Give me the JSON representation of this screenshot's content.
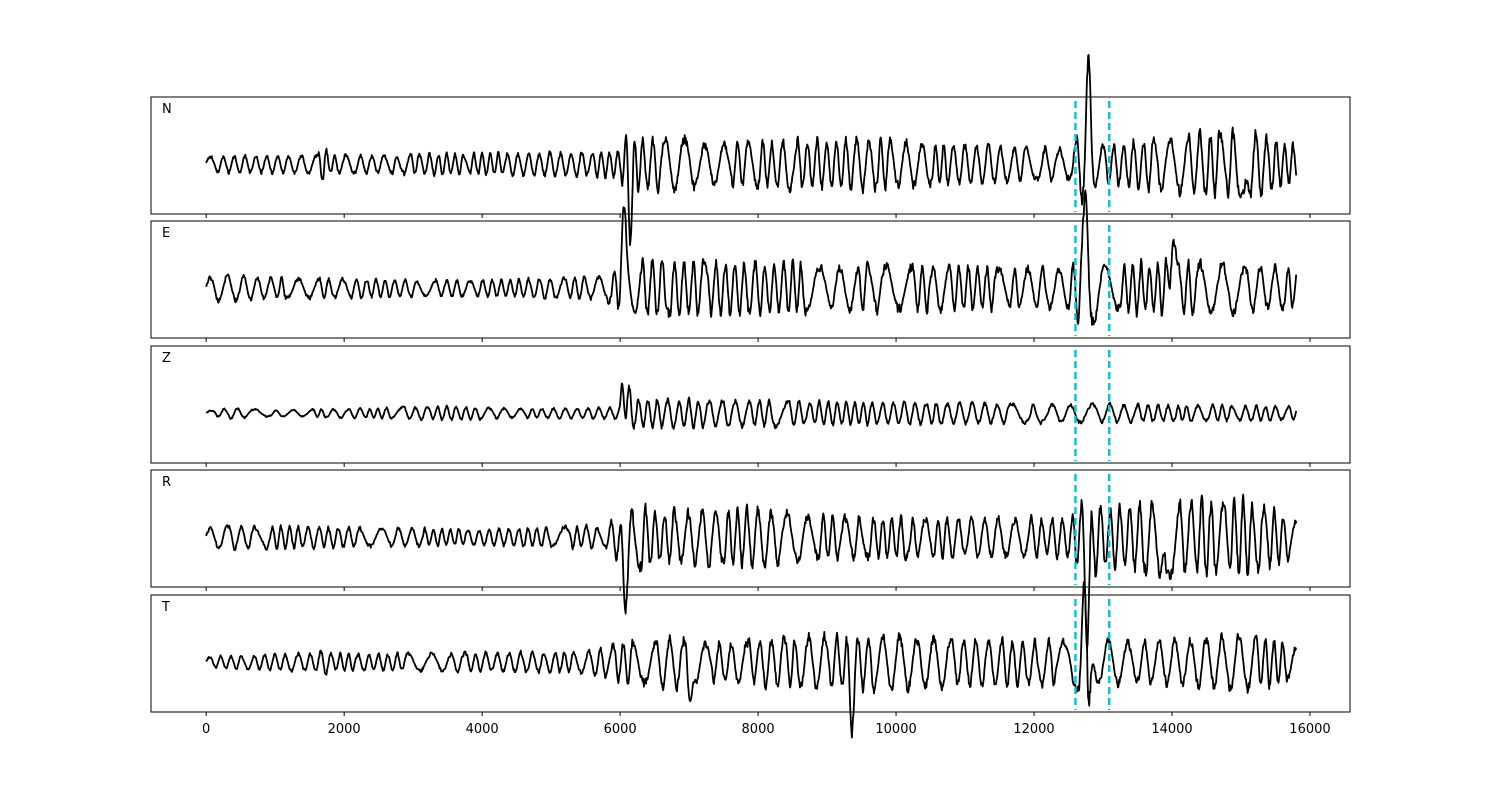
{
  "chart_data": {
    "type": "line",
    "title": "",
    "xlabel": "",
    "ylabel": "",
    "xlim": [
      -800,
      16580
    ],
    "x_ticks": [
      "0",
      "2000",
      "4000",
      "6000",
      "8000",
      "10000",
      "12000",
      "14000",
      "16000"
    ],
    "x_tick_values": [
      0,
      2000,
      4000,
      6000,
      8000,
      10000,
      12000,
      14000,
      16000
    ],
    "sample_count": 15800,
    "grid": false,
    "line_color": "#000000",
    "marker_color": "#17becf",
    "markers": [
      12600,
      13090
    ],
    "panels": [
      {
        "name": "N",
        "envelope": [
          [
            0,
            0.17
          ],
          [
            1600,
            0.2
          ],
          [
            1700,
            0.4
          ],
          [
            1800,
            0.2
          ],
          [
            3400,
            0.22
          ],
          [
            5500,
            0.25
          ],
          [
            6000,
            0.3
          ],
          [
            6100,
            0.72
          ],
          [
            6300,
            0.55
          ],
          [
            7000,
            0.55
          ],
          [
            7200,
            0.42
          ],
          [
            9300,
            0.55
          ],
          [
            12500,
            0.32
          ],
          [
            12750,
            0.9
          ],
          [
            12900,
            0.4
          ],
          [
            13700,
            0.55
          ],
          [
            14800,
            0.7
          ],
          [
            15100,
            0.72
          ],
          [
            15800,
            0.4
          ]
        ],
        "spikes": [
          [
            6150,
            -0.6
          ],
          [
            12780,
            1.0
          ],
          [
            15050,
            -0.72
          ]
        ]
      },
      {
        "name": "E",
        "envelope": [
          [
            0,
            0.22
          ],
          [
            200,
            0.28
          ],
          [
            1000,
            0.22
          ],
          [
            4000,
            0.17
          ],
          [
            5800,
            0.25
          ],
          [
            6000,
            0.55
          ],
          [
            6200,
            0.6
          ],
          [
            8000,
            0.55
          ],
          [
            9000,
            0.5
          ],
          [
            12500,
            0.42
          ],
          [
            12700,
            0.95
          ],
          [
            13000,
            0.6
          ],
          [
            13100,
            0.4
          ],
          [
            13500,
            0.55
          ],
          [
            14000,
            0.6
          ],
          [
            15800,
            0.4
          ]
        ],
        "spikes": [
          [
            6050,
            0.8
          ],
          [
            12750,
            1.0
          ],
          [
            14000,
            0.65
          ]
        ]
      },
      {
        "name": "Z",
        "envelope": [
          [
            0,
            0.04
          ],
          [
            400,
            0.12
          ],
          [
            1000,
            0.06
          ],
          [
            3500,
            0.15
          ],
          [
            4500,
            0.1
          ],
          [
            6000,
            0.12
          ],
          [
            6050,
            0.9
          ],
          [
            6200,
            0.3
          ],
          [
            7000,
            0.3
          ],
          [
            9000,
            0.25
          ],
          [
            15800,
            0.15
          ]
        ],
        "spikes": [
          [
            6040,
            1.0
          ],
          [
            6030,
            -0.55
          ]
        ]
      },
      {
        "name": "R",
        "envelope": [
          [
            0,
            0.2
          ],
          [
            200,
            0.25
          ],
          [
            1700,
            0.22
          ],
          [
            4000,
            0.17
          ],
          [
            5800,
            0.25
          ],
          [
            6000,
            0.5
          ],
          [
            6100,
            0.75
          ],
          [
            6600,
            0.55
          ],
          [
            8000,
            0.6
          ],
          [
            9000,
            0.45
          ],
          [
            12500,
            0.4
          ],
          [
            12750,
            0.95
          ],
          [
            13100,
            0.6
          ],
          [
            13800,
            0.75
          ],
          [
            15100,
            0.8
          ],
          [
            15800,
            0.4
          ]
        ],
        "spikes": [
          [
            6060,
            -0.75
          ],
          [
            12780,
            -1.0
          ],
          [
            13920,
            -0.8
          ]
        ]
      },
      {
        "name": "T",
        "envelope": [
          [
            0,
            0.12
          ],
          [
            1600,
            0.2
          ],
          [
            1700,
            0.3
          ],
          [
            1800,
            0.18
          ],
          [
            5500,
            0.22
          ],
          [
            6000,
            0.4
          ],
          [
            6400,
            0.5
          ],
          [
            7000,
            0.55
          ],
          [
            7200,
            0.4
          ],
          [
            9300,
            0.6
          ],
          [
            12500,
            0.45
          ],
          [
            12750,
            1.0
          ],
          [
            12900,
            0.45
          ],
          [
            13700,
            0.45
          ],
          [
            15200,
            0.6
          ],
          [
            15800,
            0.35
          ]
        ],
        "spikes": [
          [
            7000,
            -0.55
          ],
          [
            9350,
            -0.65
          ],
          [
            12720,
            0.85
          ],
          [
            12790,
            -1.0
          ]
        ]
      }
    ]
  }
}
